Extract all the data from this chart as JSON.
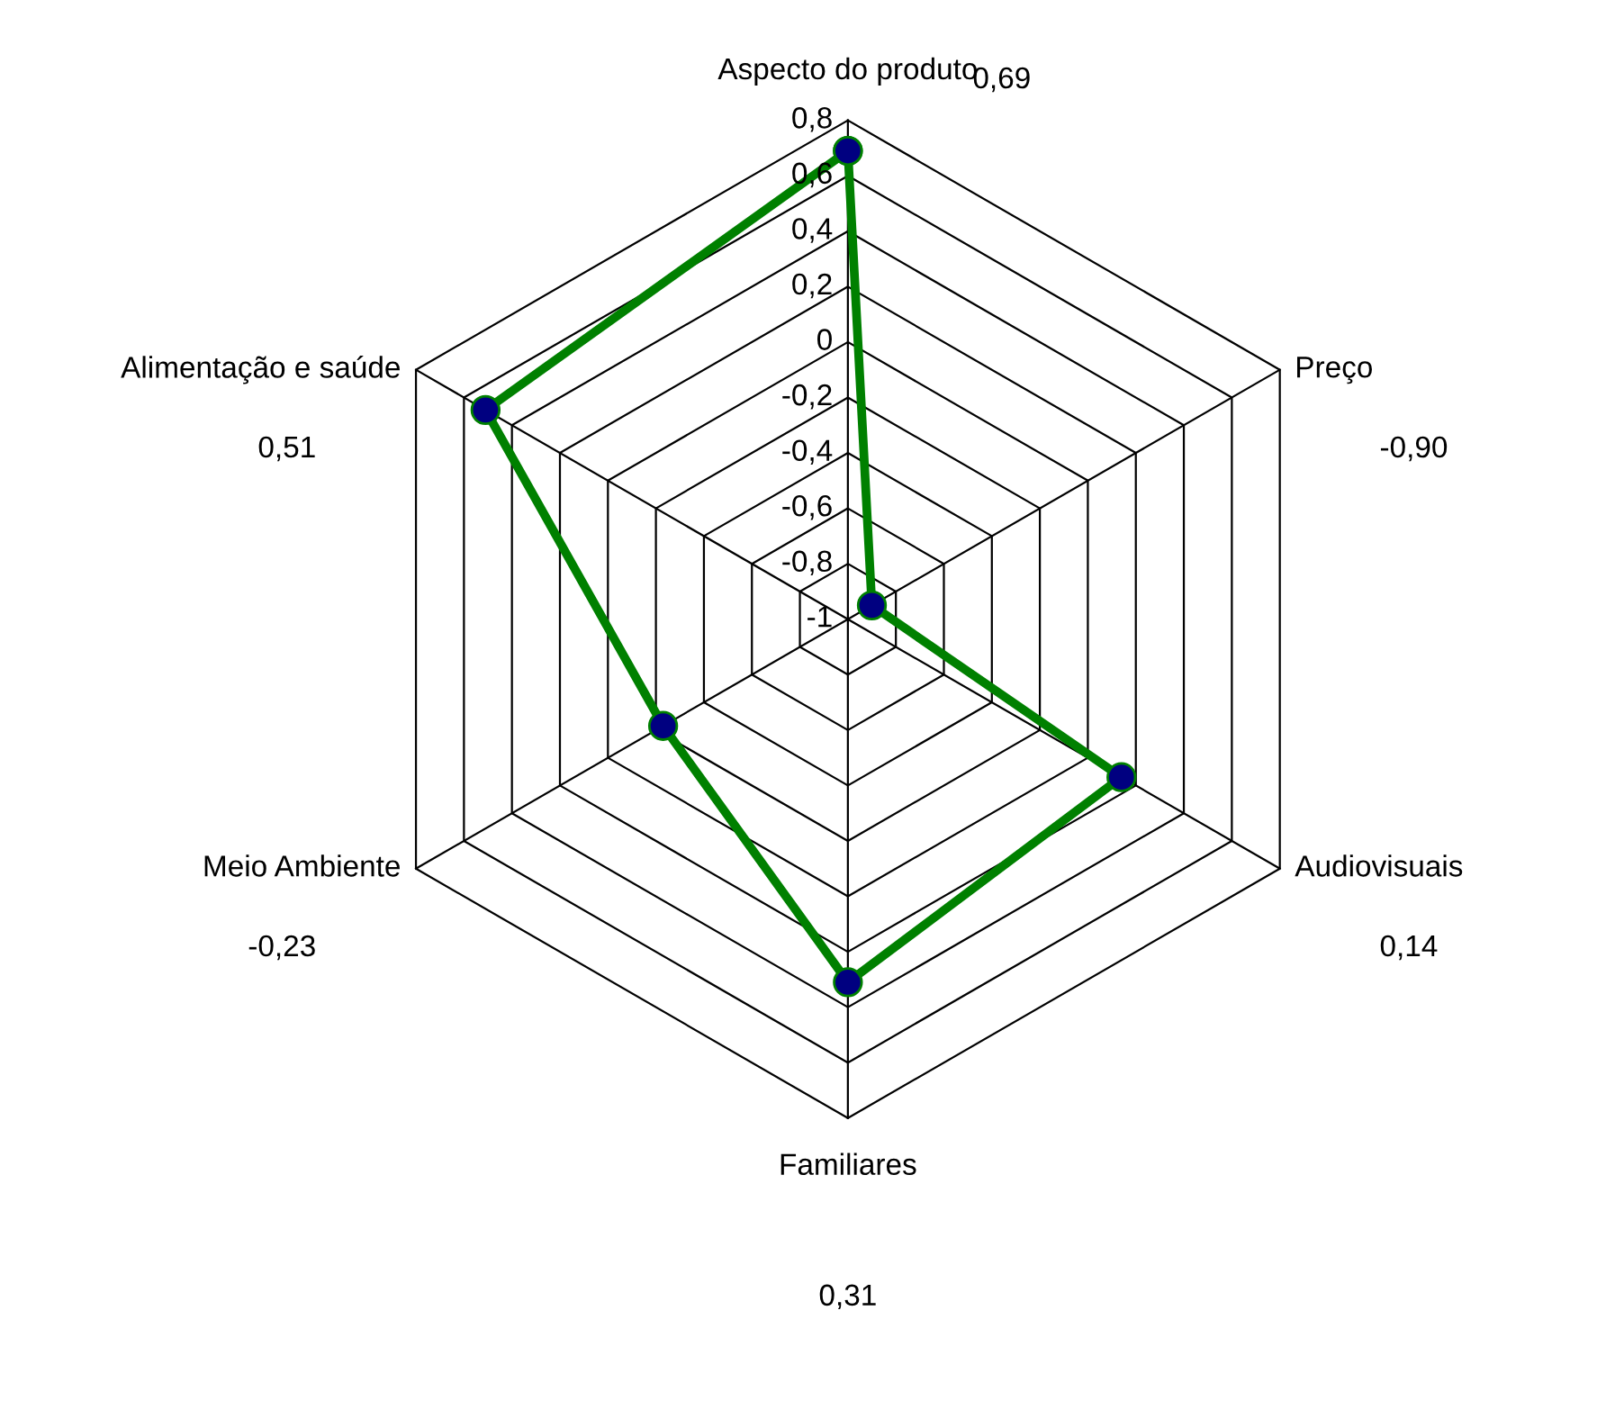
{
  "chart_data": {
    "type": "radar",
    "categories": [
      "Aspecto do produto",
      "Preço",
      "Audiovisuais",
      "Familiares",
      "Meio Ambiente",
      "Alimentação e saúde"
    ],
    "series": [
      {
        "color": "#008000",
        "values": [
          0.69,
          -0.9,
          0.14,
          0.31,
          -0.23,
          0.51
        ]
      }
    ],
    "annotations": [
      "0,69",
      "-0,90",
      "0,14",
      "0,31",
      "-0,23",
      "0,51"
    ],
    "ylim": [
      -1,
      0.8
    ],
    "yticks": [
      {
        "value": -1,
        "label": "-1"
      },
      {
        "value": -0.8,
        "label": "-0,8"
      },
      {
        "value": -0.6,
        "label": "-0,6"
      },
      {
        "value": -0.4,
        "label": "-0,4"
      },
      {
        "value": -0.2,
        "label": "-0,2"
      },
      {
        "value": 0,
        "label": "0"
      },
      {
        "value": 0.2,
        "label": "0,2"
      },
      {
        "value": 0.4,
        "label": "0,4"
      },
      {
        "value": 0.6,
        "label": "0,6"
      },
      {
        "value": 0.8,
        "label": "0,8"
      }
    ],
    "grid": true,
    "marker": "circle",
    "line_style": "solid"
  }
}
